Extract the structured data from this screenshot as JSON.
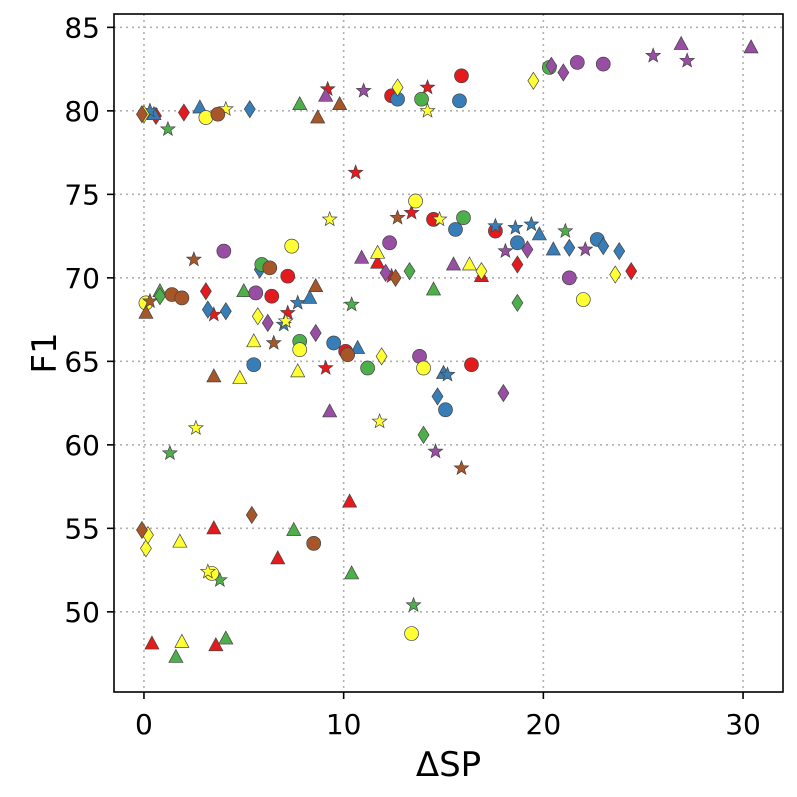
{
  "chart_data": {
    "type": "scatter",
    "title": "",
    "xlabel": "ΔSP",
    "ylabel": "F1",
    "xlim": [
      -1.5,
      32
    ],
    "ylim": [
      45.2,
      85.8
    ],
    "xticks": [
      0,
      10,
      20,
      30
    ],
    "yticks": [
      50,
      55,
      60,
      65,
      70,
      75,
      80,
      85
    ],
    "grid": true,
    "legend": "none",
    "colors": {
      "red": "#e41a1c",
      "blue": "#377eb8",
      "green": "#4daf4a",
      "purple": "#984ea3",
      "yellow": "#ffff33",
      "brown": "#a65628"
    },
    "series": [
      {
        "color": "red",
        "marker": "circle",
        "points": [
          [
            12.4,
            80.9
          ],
          [
            15.9,
            82.1
          ],
          [
            17.6,
            72.8
          ],
          [
            14.5,
            73.5
          ],
          [
            6.4,
            68.9
          ],
          [
            7.2,
            70.1
          ],
          [
            16.4,
            64.8
          ],
          [
            10.1,
            65.6
          ]
        ]
      },
      {
        "color": "red",
        "marker": "triangle",
        "points": [
          [
            0.4,
            48.1
          ],
          [
            3.6,
            48.0
          ],
          [
            3.5,
            55.0
          ],
          [
            6.7,
            53.2
          ],
          [
            10.3,
            56.6
          ],
          [
            11.7,
            70.9
          ],
          [
            16.9,
            70.1
          ]
        ]
      },
      {
        "color": "red",
        "marker": "diamond",
        "points": [
          [
            0.6,
            79.7
          ],
          [
            2.0,
            79.9
          ],
          [
            3.1,
            69.2
          ],
          [
            18.7,
            70.8
          ],
          [
            24.4,
            70.4
          ]
        ]
      },
      {
        "color": "red",
        "marker": "star",
        "points": [
          [
            9.2,
            81.3
          ],
          [
            14.2,
            81.4
          ],
          [
            10.6,
            76.3
          ],
          [
            13.4,
            73.9
          ],
          [
            3.5,
            67.8
          ],
          [
            7.2,
            67.9
          ],
          [
            9.1,
            64.6
          ],
          [
            12.4,
            70.1
          ]
        ]
      },
      {
        "color": "blue",
        "marker": "circle",
        "points": [
          [
            12.7,
            80.7
          ],
          [
            15.8,
            80.6
          ],
          [
            15.6,
            72.9
          ],
          [
            18.7,
            72.1
          ],
          [
            22.7,
            72.3
          ],
          [
            5.5,
            64.8
          ],
          [
            9.5,
            66.1
          ],
          [
            15.1,
            62.1
          ]
        ]
      },
      {
        "color": "blue",
        "marker": "triangle",
        "points": [
          [
            0.5,
            79.8
          ],
          [
            2.8,
            80.2
          ],
          [
            8.3,
            68.8
          ],
          [
            10.7,
            65.8
          ],
          [
            15.0,
            64.3
          ],
          [
            19.8,
            72.6
          ],
          [
            20.5,
            71.7
          ]
        ]
      },
      {
        "color": "blue",
        "marker": "diamond",
        "points": [
          [
            5.3,
            80.1
          ],
          [
            3.2,
            68.1
          ],
          [
            4.1,
            68.0
          ],
          [
            5.8,
            70.5
          ],
          [
            14.7,
            62.9
          ],
          [
            21.3,
            71.8
          ],
          [
            23.0,
            71.9
          ],
          [
            23.8,
            71.6
          ]
        ]
      },
      {
        "color": "blue",
        "marker": "star",
        "points": [
          [
            0.3,
            80.0
          ],
          [
            7.7,
            68.5
          ],
          [
            7.0,
            67.2
          ],
          [
            15.2,
            64.2
          ],
          [
            17.6,
            73.1
          ],
          [
            18.6,
            73.0
          ],
          [
            19.4,
            73.2
          ]
        ]
      },
      {
        "color": "green",
        "marker": "circle",
        "points": [
          [
            13.9,
            80.7
          ],
          [
            16.0,
            73.6
          ],
          [
            5.9,
            70.8
          ],
          [
            7.8,
            66.2
          ],
          [
            11.2,
            64.6
          ],
          [
            20.3,
            82.6
          ]
        ]
      },
      {
        "color": "green",
        "marker": "triangle",
        "points": [
          [
            7.8,
            80.4
          ],
          [
            1.6,
            47.3
          ],
          [
            4.1,
            48.4
          ],
          [
            7.5,
            54.9
          ],
          [
            10.4,
            52.3
          ],
          [
            5.0,
            69.2
          ],
          [
            14.5,
            69.3
          ],
          [
            0.8,
            69.2
          ]
        ]
      },
      {
        "color": "green",
        "marker": "diamond",
        "points": [
          [
            13.3,
            70.4
          ],
          [
            14.0,
            60.6
          ],
          [
            18.7,
            68.5
          ],
          [
            0.8,
            68.9
          ]
        ]
      },
      {
        "color": "green",
        "marker": "star",
        "points": [
          [
            1.2,
            78.9
          ],
          [
            1.3,
            59.5
          ],
          [
            3.8,
            51.9
          ],
          [
            10.4,
            68.4
          ],
          [
            13.5,
            50.4
          ],
          [
            21.1,
            72.8
          ]
        ]
      },
      {
        "color": "purple",
        "marker": "circle",
        "points": [
          [
            21.7,
            82.9
          ],
          [
            23.0,
            82.8
          ],
          [
            4.0,
            71.6
          ],
          [
            12.3,
            72.1
          ],
          [
            13.8,
            65.3
          ],
          [
            21.3,
            70.0
          ],
          [
            5.6,
            69.1
          ]
        ]
      },
      {
        "color": "purple",
        "marker": "triangle",
        "points": [
          [
            9.1,
            80.9
          ],
          [
            26.9,
            84.0
          ],
          [
            30.4,
            83.8
          ],
          [
            9.3,
            62.0
          ],
          [
            10.9,
            71.2
          ],
          [
            15.5,
            70.8
          ]
        ]
      },
      {
        "color": "purple",
        "marker": "diamond",
        "points": [
          [
            20.4,
            82.7
          ],
          [
            21.0,
            82.3
          ],
          [
            6.2,
            67.3
          ],
          [
            8.6,
            66.7
          ],
          [
            12.1,
            70.3
          ],
          [
            18.0,
            63.1
          ],
          [
            19.2,
            71.7
          ]
        ]
      },
      {
        "color": "purple",
        "marker": "star",
        "points": [
          [
            11.0,
            81.2
          ],
          [
            25.5,
            83.3
          ],
          [
            27.2,
            83.0
          ],
          [
            14.6,
            59.6
          ],
          [
            18.1,
            71.6
          ],
          [
            22.1,
            71.7
          ]
        ]
      },
      {
        "color": "yellow",
        "marker": "circle",
        "points": [
          [
            3.1,
            79.6
          ],
          [
            13.6,
            74.6
          ],
          [
            7.4,
            71.9
          ],
          [
            7.8,
            65.7
          ],
          [
            14.0,
            64.6
          ],
          [
            13.4,
            48.7
          ],
          [
            3.4,
            52.3
          ],
          [
            22.0,
            68.7
          ],
          [
            0.1,
            68.5
          ]
        ]
      },
      {
        "color": "yellow",
        "marker": "triangle",
        "points": [
          [
            1.8,
            54.2
          ],
          [
            1.9,
            48.2
          ],
          [
            4.8,
            64.0
          ],
          [
            5.5,
            66.2
          ],
          [
            7.7,
            64.4
          ],
          [
            11.7,
            71.5
          ],
          [
            16.3,
            70.8
          ]
        ]
      },
      {
        "color": "yellow",
        "marker": "diamond",
        "points": [
          [
            0.0,
            79.8
          ],
          [
            12.7,
            81.4
          ],
          [
            19.5,
            81.8
          ],
          [
            0.1,
            53.8
          ],
          [
            5.7,
            67.7
          ],
          [
            11.9,
            65.3
          ],
          [
            23.6,
            70.2
          ],
          [
            16.9,
            70.4
          ],
          [
            0.2,
            54.6
          ]
        ]
      },
      {
        "color": "yellow",
        "marker": "star",
        "points": [
          [
            4.1,
            80.1
          ],
          [
            14.2,
            80.0
          ],
          [
            9.3,
            73.5
          ],
          [
            14.8,
            73.5
          ],
          [
            2.6,
            61.0
          ],
          [
            11.8,
            61.4
          ],
          [
            3.2,
            52.4
          ],
          [
            7.1,
            67.4
          ]
        ]
      },
      {
        "color": "brown",
        "marker": "circle",
        "points": [
          [
            1.4,
            69.0
          ],
          [
            1.9,
            68.8
          ],
          [
            3.7,
            79.8
          ],
          [
            6.3,
            70.6
          ],
          [
            8.5,
            54.1
          ],
          [
            10.2,
            65.4
          ]
        ]
      },
      {
        "color": "brown",
        "marker": "triangle",
        "points": [
          [
            0.1,
            67.9
          ],
          [
            3.5,
            64.1
          ],
          [
            8.7,
            79.6
          ],
          [
            9.8,
            80.4
          ],
          [
            8.6,
            69.5
          ]
        ]
      },
      {
        "color": "brown",
        "marker": "diamond",
        "points": [
          [
            -0.1,
            54.9
          ],
          [
            5.4,
            55.8
          ],
          [
            -0.1,
            79.8
          ],
          [
            12.6,
            70.0
          ]
        ]
      },
      {
        "color": "brown",
        "marker": "star",
        "points": [
          [
            2.5,
            71.1
          ],
          [
            6.5,
            66.1
          ],
          [
            12.7,
            73.6
          ],
          [
            15.9,
            58.6
          ],
          [
            0.3,
            68.6
          ]
        ]
      }
    ]
  }
}
